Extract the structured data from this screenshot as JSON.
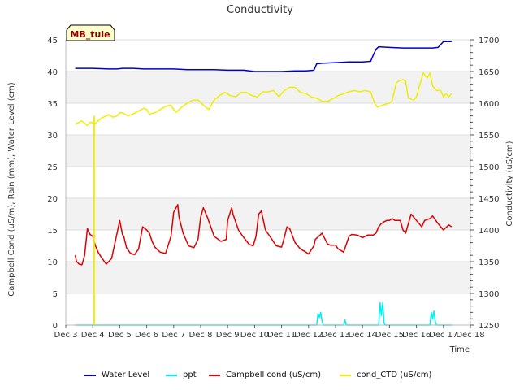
{
  "chart_data": {
    "type": "line",
    "title": "Conductivity",
    "site_label": "MB_tule",
    "xlabel": "Time",
    "ylabel_left": "Campbell Cond (uS/m), Rain (mm), Water Level (cm)",
    "ylabel_right": "Conductivity (uS/cm)",
    "x_range": [
      3,
      18
    ],
    "ylim_left": [
      0,
      45
    ],
    "ylim_right": [
      1250,
      1700
    ],
    "x_ticks": [
      {
        "value": 3,
        "label": "Dec 3"
      },
      {
        "value": 4,
        "label": "Dec 4"
      },
      {
        "value": 5,
        "label": "Dec 5"
      },
      {
        "value": 6,
        "label": "Dec 6"
      },
      {
        "value": 7,
        "label": "Dec 7"
      },
      {
        "value": 8,
        "label": "Dec 8"
      },
      {
        "value": 9,
        "label": "Dec 9"
      },
      {
        "value": 10,
        "label": "Dec 10"
      },
      {
        "value": 11,
        "label": "Dec 11"
      },
      {
        "value": 12,
        "label": "Dec 12"
      },
      {
        "value": 13,
        "label": "Dec 13"
      },
      {
        "value": 14,
        "label": "Dec 14"
      },
      {
        "value": 15,
        "label": "Dec 15"
      },
      {
        "value": 16,
        "label": "Dec 16"
      },
      {
        "value": 17,
        "label": "Dec 17"
      },
      {
        "value": 18,
        "label": "Dec 18"
      }
    ],
    "y_left_ticks": [
      0,
      5,
      10,
      15,
      20,
      25,
      30,
      35,
      40,
      45
    ],
    "y_right_ticks": [
      1250,
      1300,
      1350,
      1400,
      1450,
      1500,
      1550,
      1600,
      1650,
      1700
    ],
    "series": [
      {
        "name": "Water Level",
        "color": "#0000cc",
        "axis": "left",
        "x": [
          3.35,
          4.0,
          4.6,
          4.9,
          5.1,
          5.5,
          5.9,
          6.1,
          6.6,
          7.0,
          7.5,
          8.0,
          8.5,
          9.0,
          9.6,
          10.0,
          10.5,
          11.0,
          11.5,
          11.9,
          12.2,
          12.3,
          12.5,
          13.0,
          13.5,
          14.0,
          14.3,
          14.4,
          14.5,
          14.6,
          15.0,
          15.5,
          16.0,
          16.4,
          16.6,
          16.8,
          17.0,
          17.3
        ],
        "values": [
          40.5,
          40.5,
          40.4,
          40.4,
          40.5,
          40.5,
          40.4,
          40.4,
          40.4,
          40.4,
          40.3,
          40.3,
          40.3,
          40.2,
          40.2,
          40.0,
          40.0,
          40.0,
          40.1,
          40.1,
          40.2,
          41.2,
          41.3,
          41.4,
          41.5,
          41.5,
          41.6,
          42.6,
          43.5,
          43.9,
          43.8,
          43.7,
          43.7,
          43.7,
          43.7,
          43.8,
          44.7,
          44.7
        ]
      },
      {
        "name": "ppt",
        "color": "#00eeee",
        "axis": "left",
        "x": [
          3.35,
          12.3,
          12.35,
          12.4,
          12.45,
          12.5,
          12.55,
          13.0,
          13.3,
          13.35,
          13.4,
          14.6,
          14.65,
          14.7,
          14.75,
          14.8,
          14.85,
          16.5,
          16.55,
          16.6,
          16.65,
          16.7,
          16.75,
          17.3
        ],
        "values": [
          0,
          0,
          1.8,
          1.2,
          2.0,
          0.6,
          0,
          0,
          0,
          0.8,
          0,
          0,
          3.5,
          1.5,
          3.5,
          0.3,
          0,
          0,
          2.0,
          1.0,
          2.2,
          0.5,
          0,
          0
        ]
      },
      {
        "name": "Campbell cond (uS/cm)",
        "color": "#dd0000",
        "axis": "left",
        "x": [
          3.35,
          3.4,
          3.5,
          3.6,
          3.7,
          3.8,
          3.9,
          4.0,
          4.1,
          4.2,
          4.3,
          4.5,
          4.7,
          4.9,
          5.0,
          5.1,
          5.15,
          5.25,
          5.4,
          5.55,
          5.7,
          5.85,
          6.0,
          6.1,
          6.2,
          6.3,
          6.5,
          6.7,
          6.9,
          7.0,
          7.15,
          7.2,
          7.35,
          7.55,
          7.75,
          7.9,
          8.0,
          8.1,
          8.25,
          8.5,
          8.75,
          8.95,
          9.0,
          9.15,
          9.2,
          9.4,
          9.6,
          9.8,
          9.95,
          10.05,
          10.15,
          10.25,
          10.4,
          10.6,
          10.8,
          11.0,
          11.1,
          11.2,
          11.3,
          11.5,
          11.7,
          11.9,
          12.0,
          12.2,
          12.25,
          12.5,
          12.7,
          12.8,
          13.0,
          13.1,
          13.3,
          13.5,
          13.6,
          13.8,
          14.0,
          14.2,
          14.4,
          14.5,
          14.6,
          14.7,
          14.8,
          14.9,
          15.0,
          15.1,
          15.2,
          15.4,
          15.5,
          15.6,
          15.8,
          15.9,
          16.0,
          16.2,
          16.3,
          16.5,
          16.6,
          16.8,
          16.9,
          17.0,
          17.2,
          17.3
        ],
        "values": [
          11.0,
          10.0,
          9.6,
          9.5,
          11.0,
          15.2,
          14.3,
          14.0,
          12.5,
          11.5,
          10.8,
          9.6,
          10.5,
          14.5,
          16.5,
          14.3,
          14.0,
          12.2,
          11.3,
          11.1,
          12.0,
          15.5,
          15.0,
          14.5,
          13.2,
          12.3,
          11.5,
          11.3,
          14.0,
          17.8,
          19.0,
          17.0,
          14.5,
          12.5,
          12.2,
          13.5,
          17.0,
          18.5,
          17.0,
          14.0,
          13.2,
          13.5,
          16.5,
          18.5,
          17.5,
          15.0,
          13.8,
          12.7,
          12.5,
          14.0,
          17.5,
          18.0,
          15.0,
          13.8,
          12.5,
          12.3,
          13.8,
          15.5,
          15.2,
          13.0,
          12.0,
          11.5,
          11.2,
          12.5,
          13.5,
          14.5,
          12.8,
          12.6,
          12.6,
          12.0,
          11.5,
          14.0,
          14.3,
          14.2,
          13.8,
          14.2,
          14.2,
          14.5,
          15.5,
          16.0,
          16.3,
          16.5,
          16.5,
          16.8,
          16.5,
          16.5,
          15.0,
          14.5,
          17.5,
          17.0,
          16.5,
          15.5,
          16.5,
          16.8,
          17.2,
          16.0,
          15.5,
          15.0,
          15.8,
          15.5
        ]
      },
      {
        "name": "cond_CTD (uS/cm)",
        "color": "#eeee00",
        "axis": "right",
        "x": [
          3.35,
          3.5,
          3.6,
          3.8,
          3.9,
          4.1,
          4.3,
          4.5,
          4.6,
          4.75,
          4.9,
          5.0,
          5.1,
          5.3,
          5.5,
          5.7,
          5.9,
          6.0,
          6.1,
          6.3,
          6.5,
          6.7,
          6.9,
          7.0,
          7.1,
          7.3,
          7.5,
          7.7,
          7.9,
          8.1,
          8.3,
          8.5,
          8.7,
          8.9,
          9.1,
          9.3,
          9.5,
          9.7,
          9.9,
          10.1,
          10.3,
          10.5,
          10.7,
          10.9,
          11.1,
          11.3,
          11.5,
          11.7,
          11.9,
          12.1,
          12.3,
          12.5,
          12.7,
          12.9,
          13.1,
          13.3,
          13.5,
          13.7,
          13.9,
          14.1,
          14.3,
          14.45,
          14.55,
          14.7,
          14.9,
          15.0,
          15.1,
          15.25,
          15.35,
          15.5,
          15.6,
          15.7,
          15.9,
          16.0,
          16.1,
          16.25,
          16.4,
          16.5,
          16.6,
          16.75,
          16.9,
          17.0,
          17.1,
          17.2,
          17.3
        ],
        "values": [
          1567,
          1570,
          1572,
          1565,
          1570,
          1568,
          1576,
          1580,
          1582,
          1578,
          1580,
          1585,
          1585,
          1580,
          1583,
          1588,
          1592,
          1590,
          1583,
          1585,
          1590,
          1595,
          1597,
          1590,
          1586,
          1594,
          1600,
          1605,
          1605,
          1597,
          1590,
          1605,
          1612,
          1617,
          1612,
          1610,
          1617,
          1617,
          1612,
          1610,
          1618,
          1618,
          1620,
          1610,
          1620,
          1625,
          1625,
          1617,
          1615,
          1610,
          1608,
          1603,
          1603,
          1607,
          1612,
          1615,
          1618,
          1620,
          1618,
          1620,
          1618,
          1600,
          1594,
          1596,
          1599,
          1600,
          1604,
          1632,
          1635,
          1637,
          1635,
          1608,
          1605,
          1610,
          1625,
          1648,
          1640,
          1648,
          1627,
          1620,
          1620,
          1610,
          1615,
          1610,
          1615
        ]
      }
    ],
    "spike": {
      "series": "cond_CTD (uS/cm)",
      "x": 4.05,
      "from": 1250,
      "to": 1580
    },
    "legend": [
      "Water Level",
      "ppt",
      "Campbell cond (uS/cm)",
      "cond_CTD (uS/cm)"
    ],
    "legend_position": "bottom"
  }
}
